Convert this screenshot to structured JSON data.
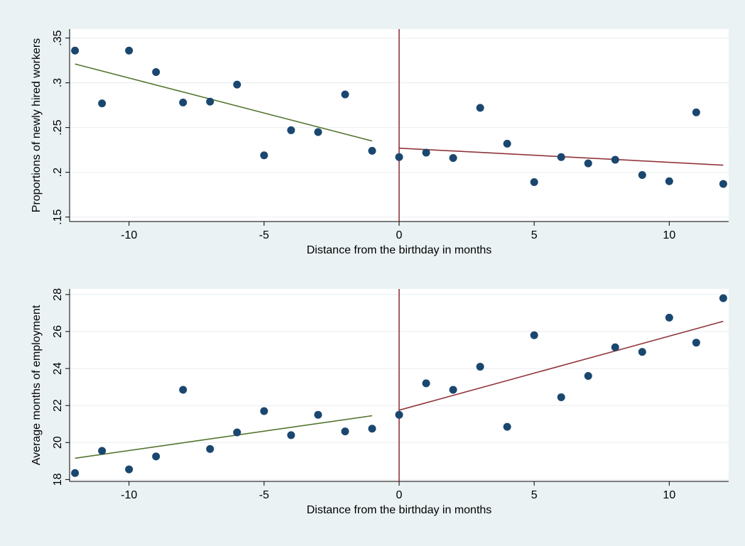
{
  "colors": {
    "background": "#eaf2f3",
    "plot_area": "#ffffff",
    "grid": "#e8eef0",
    "marker": "#1a476f",
    "fit_left": "#55752f",
    "fit_right": "#90353b",
    "cutoff_line": "#90353b"
  },
  "chart_data": [
    {
      "type": "scatter",
      "xlabel": "Distance from the birthday in months",
      "ylabel": "Proportions of newly hired workers",
      "xlim": [
        -12.2,
        12.2
      ],
      "ylim": [
        0.145,
        0.36
      ],
      "xticks": [
        -10,
        -5,
        0,
        5,
        10
      ],
      "xtick_labels": [
        "-10",
        "-5",
        "0",
        "5",
        "10"
      ],
      "yticks": [
        0.15,
        0.2,
        0.25,
        0.3,
        0.35
      ],
      "ytick_labels": [
        ".15",
        ".2",
        ".25",
        ".3",
        ".35"
      ],
      "grid": true,
      "vline_x": 0,
      "points": {
        "x": [
          -12,
          -11,
          -10,
          -9,
          -8,
          -7,
          -6,
          -5,
          -4,
          -3,
          -2,
          -1,
          0,
          1,
          2,
          3,
          4,
          5,
          6,
          7,
          8,
          9,
          10,
          11,
          12
        ],
        "y": [
          0.336,
          0.277,
          0.336,
          0.312,
          0.278,
          0.279,
          0.298,
          0.219,
          0.247,
          0.245,
          0.287,
          0.224,
          0.217,
          0.222,
          0.216,
          0.272,
          0.232,
          0.189,
          0.217,
          0.21,
          0.214,
          0.197,
          0.19,
          0.267,
          0.187
        ]
      },
      "fit_lines": [
        {
          "side": "left",
          "x": [
            -12,
            -1
          ],
          "y": [
            0.321,
            0.235
          ]
        },
        {
          "side": "right",
          "x": [
            0,
            12
          ],
          "y": [
            0.227,
            0.208
          ]
        }
      ]
    },
    {
      "type": "scatter",
      "xlabel": "Distance from the birthday in months",
      "ylabel": "Average months of employment",
      "xlim": [
        -12.2,
        12.2
      ],
      "ylim": [
        17.9,
        28.3
      ],
      "xticks": [
        -10,
        -5,
        0,
        5,
        10
      ],
      "xtick_labels": [
        "-10",
        "-5",
        "0",
        "5",
        "10"
      ],
      "yticks": [
        18,
        20,
        22,
        24,
        26,
        28
      ],
      "ytick_labels": [
        "18",
        "20",
        "22",
        "24",
        "26",
        "28"
      ],
      "grid": true,
      "vline_x": 0,
      "points": {
        "x": [
          -12,
          -11,
          -10,
          -9,
          -8,
          -7,
          -6,
          -5,
          -4,
          -3,
          -2,
          -1,
          0,
          1,
          2,
          3,
          4,
          5,
          6,
          7,
          8,
          9,
          10,
          11,
          12
        ],
        "y": [
          18.35,
          19.55,
          18.55,
          19.25,
          22.85,
          19.65,
          20.55,
          21.7,
          20.4,
          21.5,
          20.6,
          20.75,
          21.5,
          23.2,
          22.85,
          24.1,
          20.85,
          25.8,
          22.45,
          23.6,
          25.15,
          24.9,
          26.75,
          25.4,
          27.8
        ]
      },
      "fit_lines": [
        {
          "side": "left",
          "x": [
            -12,
            -1
          ],
          "y": [
            19.15,
            21.45
          ]
        },
        {
          "side": "right",
          "x": [
            0,
            12
          ],
          "y": [
            21.75,
            26.55
          ]
        }
      ]
    }
  ]
}
